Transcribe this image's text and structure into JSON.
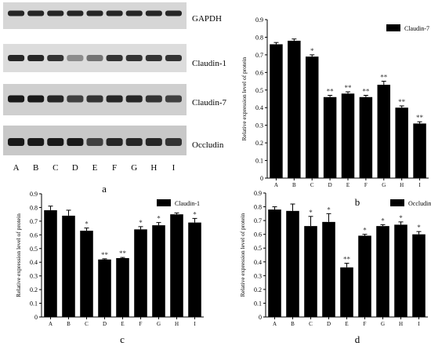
{
  "blot": {
    "rows": [
      {
        "label": "GAPDH"
      },
      {
        "label": "Claudin-1"
      },
      {
        "label": "Claudin-7"
      },
      {
        "label": "Occludin"
      }
    ],
    "lanes": [
      "A",
      "B",
      "C",
      "D",
      "E",
      "F",
      "G",
      "H",
      "I"
    ],
    "panel_label": "a"
  },
  "chart_data": [
    {
      "panel": "b",
      "type": "bar",
      "legend": "Claudin-7",
      "legend_position": "top-right",
      "ylabel": "Relative expression level of protein",
      "categories": [
        "A",
        "B",
        "C",
        "D",
        "E",
        "F",
        "G",
        "H",
        "I"
      ],
      "values": [
        0.76,
        0.78,
        0.69,
        0.46,
        0.48,
        0.46,
        0.53,
        0.4,
        0.31
      ],
      "errors": [
        0.01,
        0.01,
        0.01,
        0.01,
        0.01,
        0.01,
        0.02,
        0.01,
        0.01
      ],
      "annotations": [
        "",
        "",
        "*",
        "**",
        "**",
        "**",
        "**",
        "**",
        "**"
      ],
      "ylim": [
        0,
        0.9
      ],
      "yticks": [
        "0",
        "0.1",
        "0.2",
        "0.3",
        "0.4",
        "0.5",
        "0.6",
        "0.7",
        "0.8",
        "0.9"
      ],
      "grid": false
    },
    {
      "panel": "c",
      "type": "bar",
      "legend": "Claudin-1",
      "legend_position": "top-right",
      "ylabel": "Relative expression level of protein",
      "categories": [
        "A",
        "B",
        "C",
        "D",
        "E",
        "F",
        "G",
        "H",
        "I"
      ],
      "values": [
        0.78,
        0.74,
        0.63,
        0.42,
        0.43,
        0.64,
        0.67,
        0.75,
        0.69
      ],
      "errors": [
        0.03,
        0.04,
        0.02,
        0.005,
        0.005,
        0.02,
        0.02,
        0.01,
        0.03
      ],
      "annotations": [
        "",
        "",
        "*",
        "**",
        "**",
        "*",
        "*",
        "",
        "*"
      ],
      "ylim": [
        0,
        0.9
      ],
      "yticks": [
        "0",
        "0.1",
        "0.2",
        "0.3",
        "0.4",
        "0.5",
        "0.6",
        "0.7",
        "0.8",
        "0.9"
      ],
      "grid": false
    },
    {
      "panel": "d",
      "type": "bar",
      "legend": "Occludin",
      "legend_position": "top-right",
      "ylabel": "Relative expression level of protein",
      "categories": [
        "A",
        "B",
        "C",
        "D",
        "E",
        "F",
        "G",
        "H",
        "I"
      ],
      "values": [
        0.78,
        0.77,
        0.66,
        0.69,
        0.36,
        0.59,
        0.66,
        0.67,
        0.6
      ],
      "errors": [
        0.02,
        0.05,
        0.07,
        0.06,
        0.03,
        0.01,
        0.01,
        0.02,
        0.02
      ],
      "annotations": [
        "",
        "",
        "*",
        "*",
        "**",
        "*",
        "*",
        "*",
        "*"
      ],
      "ylim": [
        0,
        0.9
      ],
      "yticks": [
        "0",
        "0.1",
        "0.2",
        "0.3",
        "0.4",
        "0.5",
        "0.6",
        "0.7",
        "0.8",
        "0.9"
      ],
      "grid": false
    }
  ]
}
